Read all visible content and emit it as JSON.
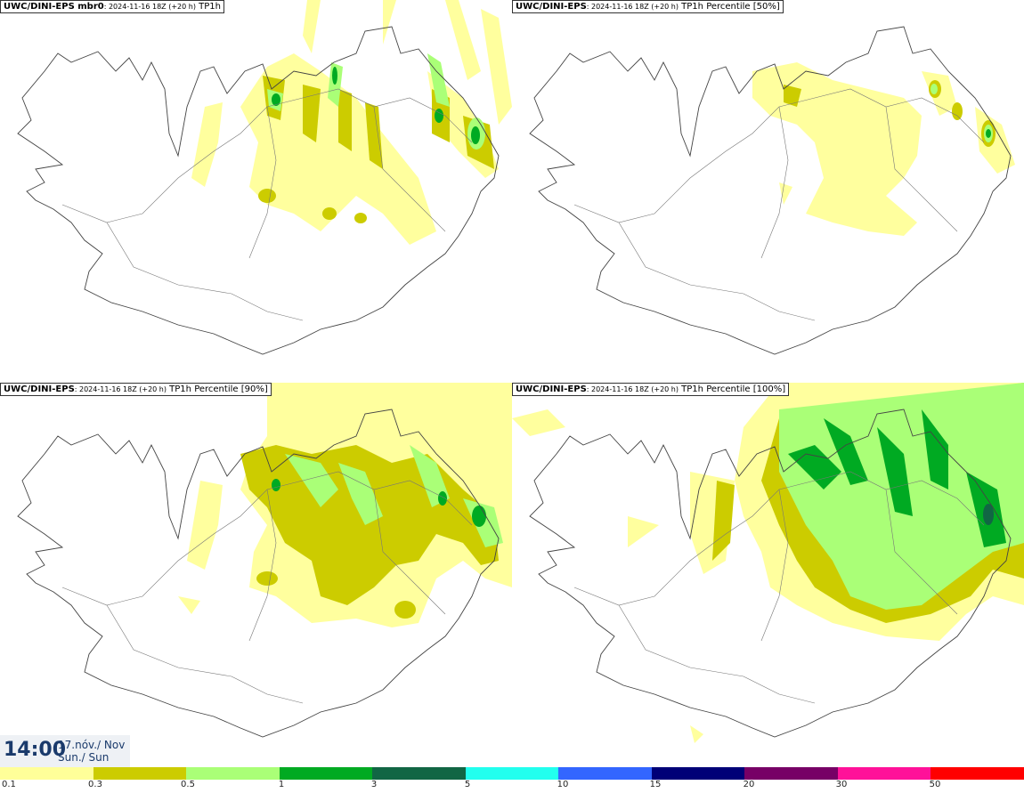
{
  "panels": [
    {
      "model": "UWC/DINI-EPS mbr0",
      "run": ": 2024-11-16 18Z (+20 h)",
      "field": "TP1h"
    },
    {
      "model": "UWC/DINI-EPS",
      "run": ": 2024-11-16 18Z (+20 h)",
      "field": "TP1h Percentile [50%]"
    },
    {
      "model": "UWC/DINI-EPS",
      "run": ": 2024-11-16 18Z (+20 h)",
      "field": "TP1h Percentile [90%]"
    },
    {
      "model": "UWC/DINI-EPS",
      "run": ": 2024-11-16 18Z (+20 h)",
      "field": "TP1h Percentile [100%]"
    }
  ],
  "valid_time": {
    "time": "14:00",
    "date_line1": "17.nóv./ Nov",
    "date_line2": "Sun./ Sun"
  },
  "legend": {
    "ticks": [
      "0.1",
      "0.3",
      "0.5",
      "1",
      "3",
      "5",
      "10",
      "15",
      "20",
      "30",
      "50"
    ],
    "colors": [
      "#ffff99",
      "#cccc00",
      "#aaff77",
      "#00aa22",
      "#116644",
      "#22ffee",
      "#3366ff",
      "#000077",
      "#770066",
      "#ff1199",
      "#ff0000"
    ]
  },
  "colors": {
    "light_yellow": "#ffff99",
    "olive": "#cccc00",
    "light_green": "#aaff77",
    "green": "#00aa22",
    "dark_green": "#116644"
  }
}
